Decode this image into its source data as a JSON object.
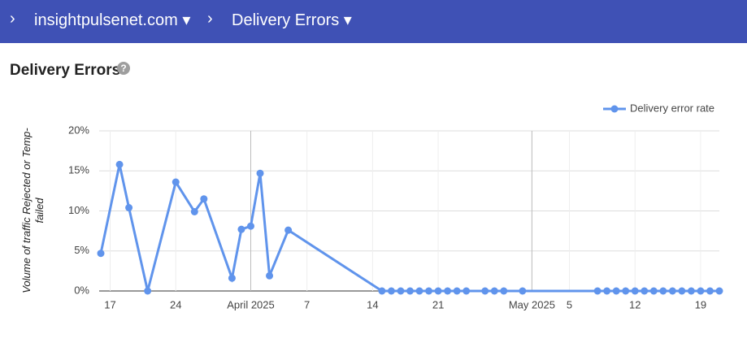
{
  "header": {
    "crumbs": [
      "insightpulsenet.com",
      "Delivery Errors"
    ]
  },
  "chart_data": {
    "type": "line",
    "title": "Delivery Errors",
    "y_label": "Volume of traffic Rejected or Temp-failed",
    "x": [
      "2025-03-16",
      "2025-03-18",
      "2025-03-19",
      "2025-03-21",
      "2025-03-24",
      "2025-03-26",
      "2025-03-27",
      "2025-03-30",
      "2025-03-31",
      "2025-04-01",
      "2025-04-02",
      "2025-04-03",
      "2025-04-05",
      "2025-04-15",
      "2025-04-16",
      "2025-04-17",
      "2025-04-18",
      "2025-04-19",
      "2025-04-20",
      "2025-04-21",
      "2025-04-22",
      "2025-04-23",
      "2025-04-24",
      "2025-04-26",
      "2025-04-27",
      "2025-04-28",
      "2025-04-30",
      "2025-05-08",
      "2025-05-09",
      "2025-05-10",
      "2025-05-11",
      "2025-05-12",
      "2025-05-13",
      "2025-05-14",
      "2025-05-15",
      "2025-05-16",
      "2025-05-17",
      "2025-05-18",
      "2025-05-19",
      "2025-05-20",
      "2025-05-21"
    ],
    "series": [
      {
        "name": "Delivery error rate",
        "color": "#6094ec",
        "values": [
          4.7,
          15.8,
          10.4,
          0,
          13.6,
          9.9,
          11.5,
          1.6,
          7.7,
          8.1,
          14.7,
          1.9,
          7.6,
          0,
          0,
          0,
          0,
          0,
          0,
          0,
          0,
          0,
          0,
          0,
          0,
          0,
          0,
          0,
          0,
          0,
          0,
          0,
          0,
          0,
          0,
          0,
          0,
          0,
          0,
          0,
          0
        ]
      }
    ],
    "xlim": [
      "2025-03-16",
      "2025-05-21"
    ],
    "xticks": [
      {
        "value": "2025-03-17",
        "label": "17"
      },
      {
        "value": "2025-03-24",
        "label": "24"
      },
      {
        "value": "2025-04-01",
        "label": "April 2025"
      },
      {
        "value": "2025-04-07",
        "label": "7"
      },
      {
        "value": "2025-04-14",
        "label": "14"
      },
      {
        "value": "2025-04-21",
        "label": "21"
      },
      {
        "value": "2025-05-01",
        "label": "May 2025"
      },
      {
        "value": "2025-05-05",
        "label": "5"
      },
      {
        "value": "2025-05-12",
        "label": "12"
      },
      {
        "value": "2025-05-19",
        "label": "19"
      }
    ],
    "ylim": [
      0,
      20
    ],
    "yticks": [
      {
        "value": 0,
        "label": "0%"
      },
      {
        "value": 5,
        "label": "5%"
      },
      {
        "value": 10,
        "label": "10%"
      },
      {
        "value": 15,
        "label": "15%"
      },
      {
        "value": 20,
        "label": "20%"
      }
    ],
    "grid": true,
    "legend": "top-right"
  }
}
